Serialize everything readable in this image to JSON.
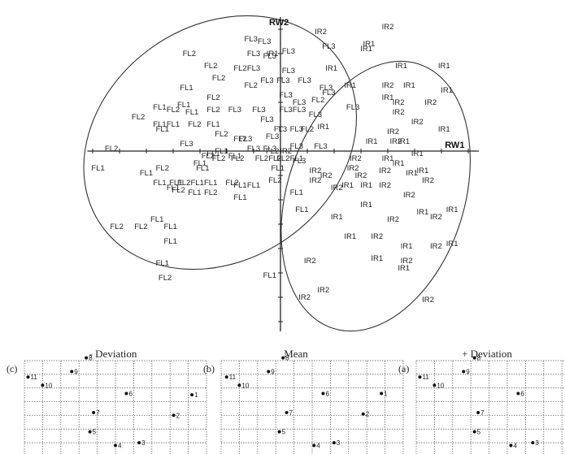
{
  "chart_data": [
    {
      "type": "scatter",
      "xlabel": "RW1",
      "ylabel": "RW2",
      "xlim": [
        -7.2,
        7.4
      ],
      "ylim": [
        -7.4,
        5.5
      ],
      "grid": false,
      "points": [
        {
          "label": "FL3",
          "x": -1.1,
          "y": 4.5
        },
        {
          "label": "FL3",
          "x": -0.6,
          "y": 4.4
        },
        {
          "label": "FL2",
          "x": -3.4,
          "y": 3.9
        },
        {
          "label": "FL3",
          "x": -1.0,
          "y": 3.9
        },
        {
          "label": "FL3",
          "x": -0.4,
          "y": 3.8
        },
        {
          "label": "IR1",
          "x": -0.3,
          "y": 3.9
        },
        {
          "label": "FL3",
          "x": 0.3,
          "y": 4.0
        },
        {
          "label": "IR2",
          "x": 1.5,
          "y": 4.8
        },
        {
          "label": "FL3",
          "x": 1.8,
          "y": 4.2
        },
        {
          "label": "IR1",
          "x": 3.2,
          "y": 4.1
        },
        {
          "label": "FL2",
          "x": -2.6,
          "y": 3.4
        },
        {
          "label": "FL2",
          "x": -1.5,
          "y": 3.3
        },
        {
          "label": "FL3",
          "x": -1.0,
          "y": 3.3
        },
        {
          "label": "FL3",
          "x": 0.3,
          "y": 3.2
        },
        {
          "label": "IR1",
          "x": 1.9,
          "y": 3.3
        },
        {
          "label": "FL2",
          "x": -2.3,
          "y": 2.9
        },
        {
          "label": "FL2",
          "x": -1.1,
          "y": 2.6
        },
        {
          "label": "FL3",
          "x": -0.5,
          "y": 2.8
        },
        {
          "label": "FL3",
          "x": 0.1,
          "y": 2.8
        },
        {
          "label": "FL3",
          "x": 0.9,
          "y": 2.8
        },
        {
          "label": "FL3",
          "x": 1.7,
          "y": 2.5
        },
        {
          "label": "FL1",
          "x": -3.5,
          "y": 2.5
        },
        {
          "label": "FL1",
          "x": -4.5,
          "y": 1.7
        },
        {
          "label": "FL2",
          "x": -4.0,
          "y": 1.6
        },
        {
          "label": "FL1",
          "x": -3.6,
          "y": 1.8
        },
        {
          "label": "FL1",
          "x": -3.3,
          "y": 1.5
        },
        {
          "label": "FL2",
          "x": -2.5,
          "y": 2.1
        },
        {
          "label": "FL2",
          "x": -2.5,
          "y": 1.6
        },
        {
          "label": "FL2",
          "x": -5.3,
          "y": 1.3
        },
        {
          "label": "FL1",
          "x": -4.5,
          "y": 1.0
        },
        {
          "label": "FL1",
          "x": -4.0,
          "y": 1.0
        },
        {
          "label": "FL1",
          "x": -4.4,
          "y": 0.8
        },
        {
          "label": "FL2",
          "x": -3.2,
          "y": 1.0
        },
        {
          "label": "FL1",
          "x": -2.5,
          "y": 1.0
        },
        {
          "label": "FL3",
          "x": -1.7,
          "y": 1.6
        },
        {
          "label": "FL3",
          "x": -0.8,
          "y": 1.6
        },
        {
          "label": "FL3",
          "x": -0.5,
          "y": 1.2
        },
        {
          "label": "FL3",
          "x": 0.2,
          "y": 1.6
        },
        {
          "label": "FL3",
          "x": 0.7,
          "y": 1.6
        },
        {
          "label": "FL3",
          "x": 0.2,
          "y": 2.2
        },
        {
          "label": "FL3",
          "x": 0.7,
          "y": 1.9
        },
        {
          "label": "FL3",
          "x": 1.8,
          "y": 2.3
        },
        {
          "label": "IR1",
          "x": 2.6,
          "y": 2.6
        },
        {
          "label": "FL2",
          "x": 1.4,
          "y": 2.0
        },
        {
          "label": "FL3",
          "x": 2.7,
          "y": 1.7
        },
        {
          "label": "FL3",
          "x": 1.3,
          "y": 1.4
        },
        {
          "label": "IR1",
          "x": 1.6,
          "y": 0.9
        },
        {
          "label": "FL3",
          "x": 0.6,
          "y": 0.8
        },
        {
          "label": "FL2",
          "x": 1.0,
          "y": 0.8
        },
        {
          "label": "FL2",
          "x": -2.2,
          "y": 0.6
        },
        {
          "label": "FL3",
          "x": -1.3,
          "y": 0.4
        },
        {
          "label": "FL2",
          "x": -1.5,
          "y": 0.4
        },
        {
          "label": "FL3",
          "x": -0.3,
          "y": 0.5
        },
        {
          "label": "FL3",
          "x": -3.5,
          "y": 0.2
        },
        {
          "label": "FL3",
          "x": -1.0,
          "y": 0.0
        },
        {
          "label": "FL3",
          "x": -0.4,
          "y": 0.0
        },
        {
          "label": "FL3",
          "x": 0.6,
          "y": 0.1
        },
        {
          "label": "FL3",
          "x": 1.5,
          "y": 0.1
        },
        {
          "label": "FL3",
          "x": 0.0,
          "y": 0.8
        },
        {
          "label": "FL2",
          "x": -6.3,
          "y": 0.0
        },
        {
          "label": "FL2",
          "x": -2.7,
          "y": -0.3
        },
        {
          "label": "FL2",
          "x": -1.6,
          "y": -0.4
        },
        {
          "label": "FL2",
          "x": -2.3,
          "y": -0.4
        },
        {
          "label": "FL1",
          "x": -2.2,
          "y": -0.1
        },
        {
          "label": "FL2",
          "x": -0.7,
          "y": -0.4
        },
        {
          "label": "FL2",
          "x": -0.2,
          "y": -0.4
        },
        {
          "label": "FL1",
          "x": -2.5,
          "y": -0.2
        },
        {
          "label": "FL2",
          "x": -0.3,
          "y": -0.1
        },
        {
          "label": "FL2",
          "x": 0.1,
          "y": -0.4
        },
        {
          "label": "FL1",
          "x": -1.7,
          "y": -0.3
        },
        {
          "label": "IR2",
          "x": 0.2,
          "y": -0.1
        },
        {
          "label": "FL3",
          "x": 0.7,
          "y": -0.5
        },
        {
          "label": "FL1",
          "x": 0.6,
          "y": -0.4
        },
        {
          "label": "FL1",
          "x": -0.1,
          "y": -0.8
        },
        {
          "label": "FL1",
          "x": -6.8,
          "y": -0.8
        },
        {
          "label": "FL2",
          "x": -4.4,
          "y": -0.8
        },
        {
          "label": "FL1",
          "x": -3.0,
          "y": -0.6
        },
        {
          "label": "FL1",
          "x": -2.9,
          "y": -0.8
        },
        {
          "label": "FL1",
          "x": -5.0,
          "y": -1.0
        },
        {
          "label": "FL1",
          "x": -4.5,
          "y": -1.4
        },
        {
          "label": "FL1",
          "x": -3.9,
          "y": -1.4
        },
        {
          "label": "FL2",
          "x": -3.6,
          "y": -1.4
        },
        {
          "label": "FL1",
          "x": -3.1,
          "y": -1.4
        },
        {
          "label": "FL1",
          "x": -2.6,
          "y": -1.4
        },
        {
          "label": "FL2",
          "x": -1.8,
          "y": -1.4
        },
        {
          "label": "FL1",
          "x": -4.0,
          "y": -1.6
        },
        {
          "label": "FL2",
          "x": -3.8,
          "y": -1.7
        },
        {
          "label": "FL1",
          "x": -3.2,
          "y": -1.8
        },
        {
          "label": "FL2",
          "x": -2.6,
          "y": -1.8
        },
        {
          "label": "FL1",
          "x": -1.5,
          "y": -1.5
        },
        {
          "label": "FL1",
          "x": -1.0,
          "y": -1.5
        },
        {
          "label": "FL2",
          "x": -0.2,
          "y": -1.3
        },
        {
          "label": "FL1",
          "x": 0.6,
          "y": -1.8
        },
        {
          "label": "IR2",
          "x": 2.8,
          "y": -0.4
        },
        {
          "label": "IR2",
          "x": 1.3,
          "y": -0.9
        },
        {
          "label": "IR2",
          "x": 2.7,
          "y": -0.8
        },
        {
          "label": "IR2",
          "x": 1.7,
          "y": -1.1
        },
        {
          "label": "IR2",
          "x": 1.3,
          "y": -1.3
        },
        {
          "label": "IR2",
          "x": 2.1,
          "y": -1.6
        },
        {
          "label": "IR2",
          "x": 3.0,
          "y": -1.1
        },
        {
          "label": "IR1",
          "x": 2.5,
          "y": -1.5
        },
        {
          "label": "IR1",
          "x": 3.2,
          "y": -1.5
        },
        {
          "label": "IR1",
          "x": 3.2,
          "y": -2.3
        },
        {
          "label": "FL1",
          "x": -1.5,
          "y": -2.0
        },
        {
          "label": "FL1",
          "x": 0.8,
          "y": -2.5
        },
        {
          "label": "IR1",
          "x": 2.1,
          "y": -2.8
        },
        {
          "label": "FL1",
          "x": -4.6,
          "y": -2.9
        },
        {
          "label": "FL1",
          "x": -4.1,
          "y": -3.2
        },
        {
          "label": "FL2",
          "x": -6.1,
          "y": -3.2
        },
        {
          "label": "FL2",
          "x": -5.2,
          "y": -3.2
        },
        {
          "label": "FL1",
          "x": -4.1,
          "y": -3.8
        },
        {
          "label": "FL1",
          "x": -4.4,
          "y": -4.7
        },
        {
          "label": "FL2",
          "x": -4.3,
          "y": -5.3
        },
        {
          "label": "IR1",
          "x": 2.6,
          "y": -3.6
        },
        {
          "label": "IR2",
          "x": 1.1,
          "y": -4.6
        },
        {
          "label": "FL1",
          "x": -0.4,
          "y": -5.2
        },
        {
          "label": "IR1",
          "x": 3.6,
          "y": -4.5
        },
        {
          "label": "IR2",
          "x": 1.6,
          "y": -5.8
        },
        {
          "label": "IR2",
          "x": 0.9,
          "y": -6.1
        },
        {
          "label": "IR2",
          "x": 5.5,
          "y": -6.2
        },
        {
          "label": "IR2",
          "x": 4.0,
          "y": 5.0
        },
        {
          "label": "IR1",
          "x": 3.3,
          "y": 4.3
        },
        {
          "label": "IR1",
          "x": 4.5,
          "y": 3.4
        },
        {
          "label": "IR1",
          "x": 6.1,
          "y": 3.4
        },
        {
          "label": "IR2",
          "x": 4.0,
          "y": 2.6
        },
        {
          "label": "IR1",
          "x": 4.8,
          "y": 2.6
        },
        {
          "label": "IR1",
          "x": 6.2,
          "y": 2.4
        },
        {
          "label": "IR1",
          "x": 4.0,
          "y": 2.1
        },
        {
          "label": "IR2",
          "x": 4.4,
          "y": 1.9
        },
        {
          "label": "IR2",
          "x": 5.6,
          "y": 1.9
        },
        {
          "label": "IR2",
          "x": 4.4,
          "y": 1.5
        },
        {
          "label": "IR2",
          "x": 5.1,
          "y": 1.1
        },
        {
          "label": "IR1",
          "x": 6.1,
          "y": 0.8
        },
        {
          "label": "IR2",
          "x": 4.2,
          "y": 0.7
        },
        {
          "label": "IR1",
          "x": 3.4,
          "y": 0.3
        },
        {
          "label": "IR2",
          "x": 4.3,
          "y": 0.3
        },
        {
          "label": "IR1",
          "x": 4.6,
          "y": 0.3
        },
        {
          "label": "IR1",
          "x": 5.1,
          "y": -0.2
        },
        {
          "label": "IR1",
          "x": 4.0,
          "y": -0.4
        },
        {
          "label": "IR1",
          "x": 4.4,
          "y": -0.6
        },
        {
          "label": "IR2",
          "x": 3.9,
          "y": -0.9
        },
        {
          "label": "IR1",
          "x": 4.9,
          "y": -1.0
        },
        {
          "label": "IR1",
          "x": 5.3,
          "y": -0.9
        },
        {
          "label": "IR2",
          "x": 3.9,
          "y": -1.5
        },
        {
          "label": "IR2",
          "x": 5.5,
          "y": -1.3
        },
        {
          "label": "IR2",
          "x": 4.8,
          "y": -1.9
        },
        {
          "label": "IR2",
          "x": 4.2,
          "y": -2.9
        },
        {
          "label": "IR1",
          "x": 5.3,
          "y": -2.6
        },
        {
          "label": "IR2",
          "x": 5.8,
          "y": -2.8
        },
        {
          "label": "IR1",
          "x": 6.4,
          "y": -2.5
        },
        {
          "label": "IR2",
          "x": 3.6,
          "y": -3.6
        },
        {
          "label": "IR1",
          "x": 4.7,
          "y": -4.0
        },
        {
          "label": "IR2",
          "x": 4.7,
          "y": -4.6
        },
        {
          "label": "IR1",
          "x": 4.6,
          "y": -4.9
        },
        {
          "label": "IR2",
          "x": 5.8,
          "y": -4.0
        },
        {
          "label": "IR1",
          "x": 6.4,
          "y": -3.9
        }
      ],
      "ellipses": [
        {
          "cx": -2.25,
          "cy": 0.35,
          "rx": 5.4,
          "ry": 4.8,
          "rotate_deg": 35
        },
        {
          "cx": 3.55,
          "cy": -1.85,
          "rx": 3.3,
          "ry": 5.7,
          "rotate_deg": -18
        }
      ]
    },
    {
      "type": "scatter",
      "title": "- Deviation",
      "tag": "(c)",
      "landmarks": [
        {
          "label": "1",
          "x": 9.2,
          "y": 4.5
        },
        {
          "label": "2",
          "x": 8.2,
          "y": 3.0
        },
        {
          "label": "3",
          "x": 6.3,
          "y": 1.0
        },
        {
          "label": "4",
          "x": 5.0,
          "y": 0.8
        },
        {
          "label": "5",
          "x": 3.6,
          "y": 1.8
        },
        {
          "label": "6",
          "x": 5.6,
          "y": 4.6
        },
        {
          "label": "7",
          "x": 3.8,
          "y": 3.2
        },
        {
          "label": "8",
          "x": 3.4,
          "y": 7.2
        },
        {
          "label": "9",
          "x": 2.6,
          "y": 6.2
        },
        {
          "label": "10",
          "x": 1.0,
          "y": 5.2
        },
        {
          "label": "11",
          "x": 0.2,
          "y": 5.8
        }
      ]
    },
    {
      "type": "scatter",
      "title": "Mean",
      "tag": "(b)",
      "landmarks": [
        {
          "label": "1",
          "x": 8.8,
          "y": 4.6
        },
        {
          "label": "2",
          "x": 7.8,
          "y": 3.1
        },
        {
          "label": "3",
          "x": 6.2,
          "y": 1.0
        },
        {
          "label": "4",
          "x": 5.1,
          "y": 0.8
        },
        {
          "label": "5",
          "x": 3.2,
          "y": 1.8
        },
        {
          "label": "6",
          "x": 5.6,
          "y": 4.6
        },
        {
          "label": "7",
          "x": 3.6,
          "y": 3.2
        },
        {
          "label": "8",
          "x": 3.4,
          "y": 7.2
        },
        {
          "label": "9",
          "x": 2.6,
          "y": 6.2
        },
        {
          "label": "10",
          "x": 1.0,
          "y": 5.2
        },
        {
          "label": "11",
          "x": 0.3,
          "y": 5.8
        }
      ]
    },
    {
      "type": "scatter",
      "title": "+ Deviation",
      "tag": "(a)",
      "landmarks": [
        {
          "label": "2",
          "x": 8.6,
          "y": 3.1
        },
        {
          "label": "3",
          "x": 6.4,
          "y": 1.0
        },
        {
          "label": "4",
          "x": 5.2,
          "y": 0.8
        },
        {
          "label": "5",
          "x": 3.2,
          "y": 1.8
        },
        {
          "label": "6",
          "x": 5.6,
          "y": 4.6
        },
        {
          "label": "7",
          "x": 3.4,
          "y": 3.2
        },
        {
          "label": "8",
          "x": 3.2,
          "y": 7.2
        },
        {
          "label": "9",
          "x": 2.6,
          "y": 6.2
        },
        {
          "label": "10",
          "x": 1.0,
          "y": 5.2
        },
        {
          "label": "11",
          "x": 0.2,
          "y": 5.8
        }
      ]
    }
  ]
}
